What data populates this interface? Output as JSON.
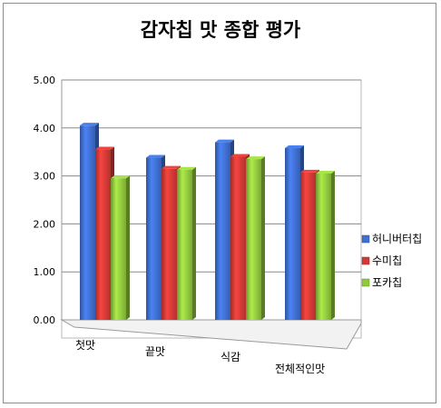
{
  "chart_data": {
    "type": "bar",
    "title": "감자칩 맛 종합 평가",
    "categories": [
      "첫맛",
      "끝맛",
      "식감",
      "전체적인맛"
    ],
    "series": [
      {
        "name": "허니버터칩",
        "color": "#3f6fd0",
        "values": [
          4.05,
          3.38,
          3.7,
          3.58
        ]
      },
      {
        "name": "수미칩",
        "color": "#d23a36",
        "values": [
          3.55,
          3.15,
          3.4,
          3.07
        ]
      },
      {
        "name": "포카칩",
        "color": "#92c83e",
        "values": [
          2.95,
          3.13,
          3.35,
          3.05
        ]
      }
    ],
    "yticks": [
      "0.00",
      "1.00",
      "2.00",
      "3.00",
      "4.00",
      "5.00"
    ],
    "ylim": [
      0,
      5
    ],
    "grid": true,
    "legend": "right",
    "style": "3d-clustered-column"
  }
}
